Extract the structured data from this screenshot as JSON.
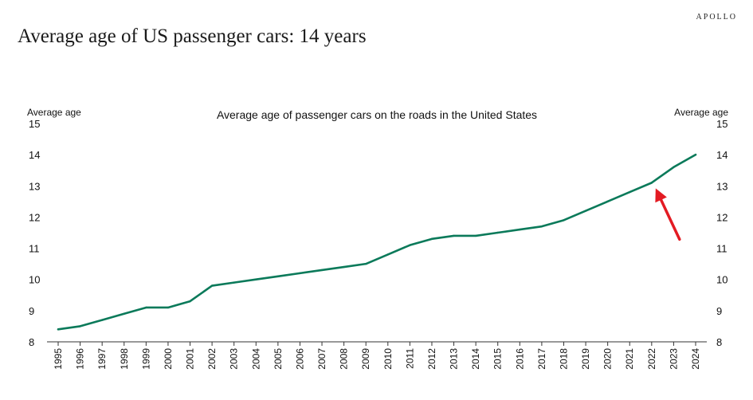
{
  "page": {
    "brand": "APOLLO",
    "headline": "Average age of US passenger cars: 14 years"
  },
  "chart_data": {
    "type": "line",
    "title": "Average age of passenger cars on the roads in the United States",
    "ylabel_left": "Average age",
    "ylabel_right": "Average age",
    "xlabel": "",
    "ylim": [
      8,
      15
    ],
    "yticks": [
      8,
      9,
      10,
      11,
      12,
      13,
      14,
      15
    ],
    "x": [
      "1995",
      "1996",
      "1997",
      "1998",
      "1999",
      "2000",
      "2001",
      "2002",
      "2003",
      "2004",
      "2005",
      "2006",
      "2007",
      "2008",
      "2009",
      "2010",
      "2011",
      "2012",
      "2013",
      "2014",
      "2015",
      "2016",
      "2017",
      "2018",
      "2019",
      "2020",
      "2021",
      "2022",
      "2023",
      "2024"
    ],
    "series": [
      {
        "name": "Average age",
        "color": "#0b7a5a",
        "values": [
          8.4,
          8.5,
          8.7,
          8.9,
          9.1,
          9.1,
          9.3,
          9.8,
          9.9,
          10.0,
          10.1,
          10.2,
          10.3,
          10.4,
          10.5,
          10.8,
          11.1,
          11.3,
          11.4,
          11.4,
          11.5,
          11.6,
          11.7,
          11.9,
          12.2,
          12.5,
          12.8,
          13.1,
          13.6,
          14.0
        ]
      }
    ],
    "annotation": {
      "type": "arrow",
      "target_year": "2022",
      "color": "#e31b23"
    }
  }
}
